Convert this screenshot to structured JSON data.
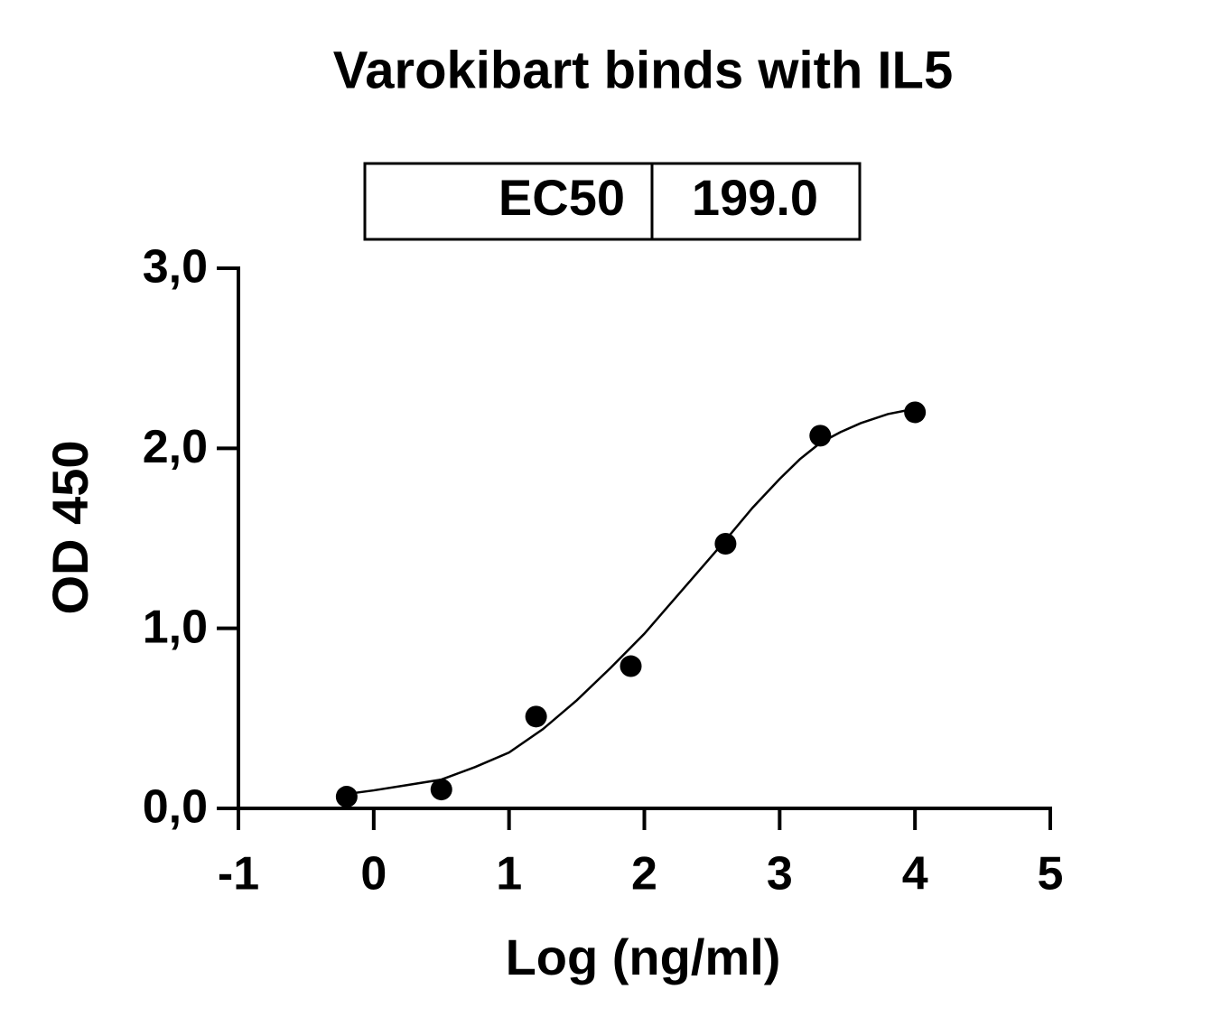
{
  "chart_data": {
    "type": "scatter",
    "title": "Varokibart binds with IL5",
    "legend_table": {
      "label": "EC50",
      "value": "199.0"
    },
    "x_label": "Log (ng/ml)",
    "y_label": "OD 450",
    "xlim": [
      -1,
      5
    ],
    "xticks": [
      -1,
      0,
      1,
      2,
      3,
      4,
      5
    ],
    "ylim": [
      0,
      3
    ],
    "yticks": [
      {
        "value": 0,
        "label": "0,0"
      },
      {
        "value": 1,
        "label": "1,0"
      },
      {
        "value": 2,
        "label": "2,0"
      },
      {
        "value": 3,
        "label": "3,0"
      }
    ],
    "series": [
      {
        "color": "#000000",
        "x": [
          -0.2,
          0.5,
          1.2,
          1.9,
          2.6,
          3.3,
          4.0
        ],
        "values": [
          0.065,
          0.105,
          0.51,
          0.79,
          1.47,
          2.07,
          2.2
        ]
      },
      {
        "type": "line",
        "color": "#000000",
        "x": [
          -0.2,
          0,
          0.25,
          0.5,
          0.75,
          1.0,
          1.25,
          1.5,
          1.75,
          2.0,
          2.15,
          2.3,
          2.45,
          2.6,
          2.8,
          3.0,
          3.15,
          3.3,
          3.45,
          3.6,
          3.8,
          4.0
        ],
        "values": [
          0.08,
          0.1,
          0.13,
          0.16,
          0.23,
          0.31,
          0.44,
          0.6,
          0.78,
          0.97,
          1.1,
          1.23,
          1.36,
          1.49,
          1.67,
          1.83,
          1.94,
          2.03,
          2.09,
          2.14,
          2.19,
          2.22
        ]
      }
    ]
  }
}
